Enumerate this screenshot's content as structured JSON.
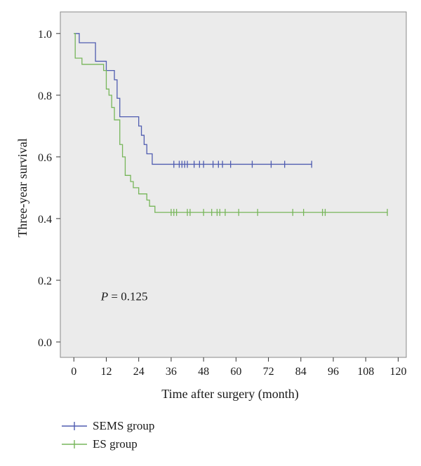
{
  "chart_data": {
    "type": "line",
    "subtype": "kaplan-meier step curve with censoring marks",
    "title": "",
    "xlabel": "Time after surgery (month)",
    "ylabel": "Three-year survival",
    "xlim": [
      -5,
      123
    ],
    "ylim": [
      -0.05,
      1.07
    ],
    "xticks": [
      0,
      12,
      24,
      36,
      48,
      60,
      72,
      84,
      96,
      108,
      120
    ],
    "yticks": [
      0.0,
      0.2,
      0.4,
      0.6,
      0.8,
      1.0
    ],
    "ytick_labels": [
      "0.0",
      "0.2",
      "0.4",
      "0.6",
      "0.8",
      "1.0"
    ],
    "annotation": {
      "italic": "P",
      "rest": " = 0.125",
      "x": 10,
      "y": 0.135
    },
    "plot_background": "#ebebeb",
    "legend_position": "bottom-left",
    "series": [
      {
        "name": "SEMS group",
        "color": "#4f5cb0",
        "steps": [
          [
            0,
            1.0
          ],
          [
            2,
            0.97
          ],
          [
            8,
            0.91
          ],
          [
            12,
            0.88
          ],
          [
            15,
            0.85
          ],
          [
            16,
            0.79
          ],
          [
            17,
            0.73
          ],
          [
            24,
            0.7
          ],
          [
            25,
            0.67
          ],
          [
            26,
            0.64
          ],
          [
            27,
            0.61
          ],
          [
            29,
            0.576
          ],
          [
            88,
            0.576
          ]
        ],
        "censored": [
          37,
          39,
          40,
          41,
          42,
          44.5,
          46.5,
          48,
          51.5,
          53.5,
          55,
          58,
          66,
          73,
          78,
          88
        ]
      },
      {
        "name": "ES group",
        "color": "#77b65a",
        "steps": [
          [
            0,
            1.0
          ],
          [
            0.5,
            0.92
          ],
          [
            3,
            0.9
          ],
          [
            11,
            0.88
          ],
          [
            12,
            0.82
          ],
          [
            13,
            0.8
          ],
          [
            14,
            0.76
          ],
          [
            15,
            0.72
          ],
          [
            17,
            0.64
          ],
          [
            18,
            0.6
          ],
          [
            19,
            0.54
          ],
          [
            21,
            0.52
          ],
          [
            22,
            0.5
          ],
          [
            24,
            0.48
          ],
          [
            27,
            0.46
          ],
          [
            28,
            0.44
          ],
          [
            30,
            0.42
          ],
          [
            116,
            0.42
          ]
        ],
        "censored": [
          36,
          37,
          38,
          42,
          43,
          48,
          51,
          53,
          54,
          56,
          61,
          68,
          81,
          85,
          92,
          93,
          116
        ]
      }
    ]
  }
}
